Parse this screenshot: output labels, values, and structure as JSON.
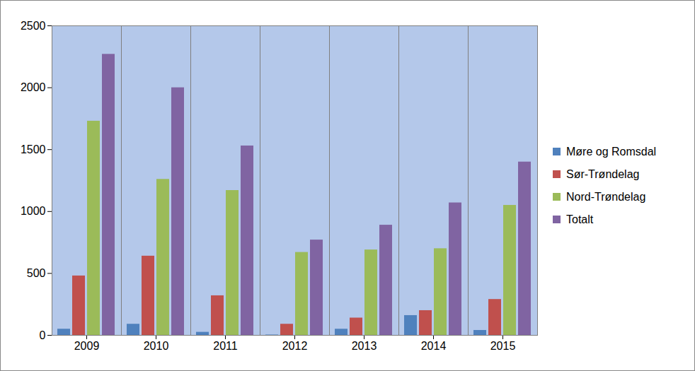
{
  "chart_data": {
    "type": "bar",
    "categories": [
      "2009",
      "2010",
      "2011",
      "2012",
      "2013",
      "2014",
      "2015"
    ],
    "series": [
      {
        "name": "Møre og Romsdal",
        "color": "#4f81bd",
        "values": [
          50,
          90,
          25,
          3,
          50,
          160,
          40
        ]
      },
      {
        "name": "Sør-Trøndelag",
        "color": "#c0504d",
        "values": [
          480,
          640,
          320,
          90,
          140,
          200,
          290
        ]
      },
      {
        "name": "Nord-Trøndelag",
        "color": "#9bbb59",
        "values": [
          1730,
          1260,
          1170,
          670,
          690,
          700,
          1050
        ]
      },
      {
        "name": "Totalt",
        "color": "#8064a2",
        "values": [
          2270,
          2000,
          1530,
          770,
          890,
          1070,
          1400
        ]
      }
    ],
    "ylim": [
      0,
      2500
    ],
    "yticks": [
      0,
      500,
      1000,
      1500,
      2000,
      2500
    ],
    "grid": true,
    "legend": "right"
  }
}
